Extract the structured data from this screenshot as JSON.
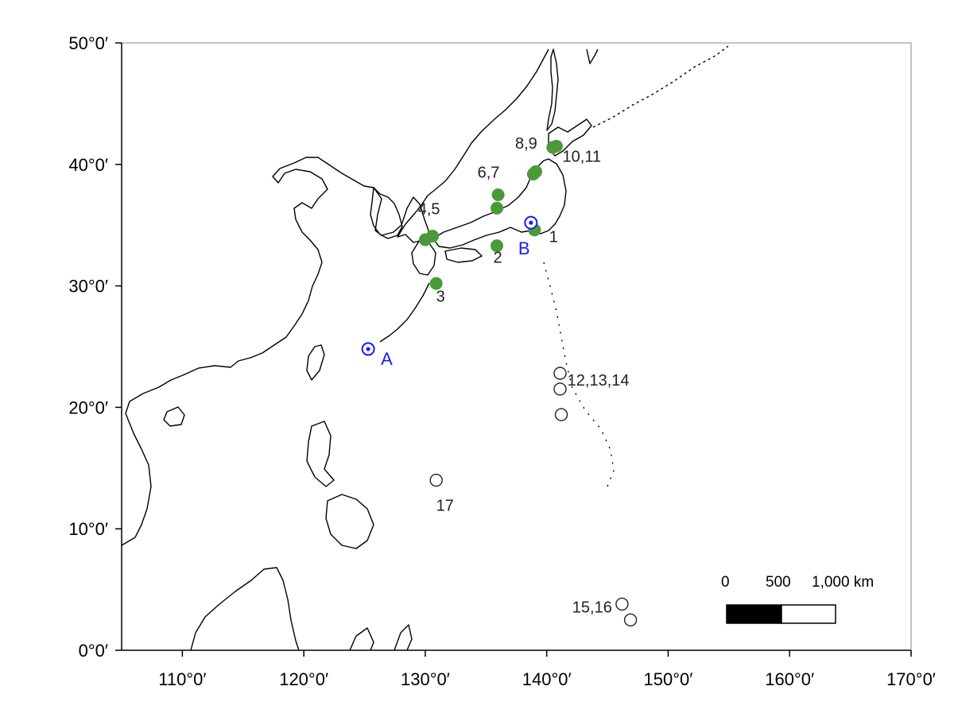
{
  "map": {
    "x_ticks": [
      {
        "value": 110,
        "label": "110°0′"
      },
      {
        "value": 120,
        "label": "120°0′"
      },
      {
        "value": 130,
        "label": "130°0′"
      },
      {
        "value": 140,
        "label": "140°0′"
      },
      {
        "value": 150,
        "label": "150°0′"
      },
      {
        "value": 160,
        "label": "160°0′"
      },
      {
        "value": 170,
        "label": "170°0′"
      }
    ],
    "y_ticks": [
      {
        "value": 0,
        "label": "0°0′"
      },
      {
        "value": 10,
        "label": "10°0′"
      },
      {
        "value": 20,
        "label": "20°0′"
      },
      {
        "value": 30,
        "label": "30°0′"
      },
      {
        "value": 40,
        "label": "40°0′"
      },
      {
        "value": 50,
        "label": "50°0′"
      }
    ],
    "lon_range": [
      105,
      170
    ],
    "lat_range": [
      0,
      50
    ],
    "colors": {
      "filled_site": "#4a9a3a",
      "reference_site": "#1a1aff",
      "coast": "#000000"
    },
    "filled_sites": [
      {
        "lon": 139.0,
        "lat": 34.6
      },
      {
        "lon": 135.9,
        "lat": 33.3
      },
      {
        "lon": 130.9,
        "lat": 30.2
      },
      {
        "lon": 130.0,
        "lat": 33.8
      },
      {
        "lon": 130.6,
        "lat": 34.1
      },
      {
        "lon": 136.0,
        "lat": 37.5
      },
      {
        "lon": 135.9,
        "lat": 36.4
      },
      {
        "lon": 139.1,
        "lat": 39.4
      },
      {
        "lon": 138.9,
        "lat": 39.2
      },
      {
        "lon": 140.5,
        "lat": 41.4
      },
      {
        "lon": 140.8,
        "lat": 41.5
      }
    ],
    "open_sites": [
      {
        "lon": 141.1,
        "lat": 22.8
      },
      {
        "lon": 141.1,
        "lat": 21.5
      },
      {
        "lon": 141.2,
        "lat": 19.4
      },
      {
        "lon": 146.2,
        "lat": 3.8
      },
      {
        "lon": 146.9,
        "lat": 2.5
      },
      {
        "lon": 130.9,
        "lat": 14.0
      }
    ],
    "reference_sites": [
      {
        "name": "A",
        "lon": 125.3,
        "lat": 24.8
      },
      {
        "name": "B",
        "lon": 138.7,
        "lat": 35.2
      }
    ],
    "site_labels": [
      {
        "text": "1",
        "lon": 140.2,
        "lat": 33.6
      },
      {
        "text": "2",
        "lon": 135.6,
        "lat": 31.9
      },
      {
        "text": "3",
        "lon": 130.9,
        "lat": 28.7
      },
      {
        "text": "4,5",
        "lon": 129.4,
        "lat": 35.9
      },
      {
        "text": "6,7",
        "lon": 134.3,
        "lat": 38.9
      },
      {
        "text": "8,9",
        "lon": 137.4,
        "lat": 41.3
      },
      {
        "text": "10,11",
        "lon": 141.3,
        "lat": 40.2
      },
      {
        "text": "12,13,14",
        "lon": 141.7,
        "lat": 21.8
      },
      {
        "text": "15,16",
        "lon": 142.1,
        "lat": 3.1
      },
      {
        "text": "17",
        "lon": 130.9,
        "lat": 11.5
      }
    ],
    "scale_bar": {
      "labels": [
        "0",
        "500",
        "1,000 km"
      ]
    }
  }
}
